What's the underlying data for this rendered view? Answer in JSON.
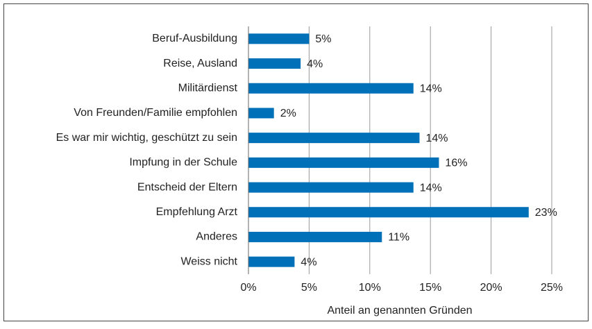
{
  "chart_data": {
    "type": "bar",
    "orientation": "horizontal",
    "categories": [
      "Beruf-Ausbildung",
      "Reise, Ausland",
      "Militärdienst",
      "Von Freunden/Familie empfohlen",
      "Es war mir wichtig, geschützt zu sein",
      "Impfung in der Schule",
      "Entscheid der Eltern",
      "Empfehlung Arzt",
      "Anderes",
      "Weiss nicht"
    ],
    "values": [
      5.0,
      4.3,
      13.6,
      2.1,
      14.1,
      15.7,
      13.6,
      23.1,
      11.0,
      3.8
    ],
    "value_labels": [
      "5%",
      "4%",
      "14%",
      "2%",
      "14%",
      "16%",
      "14%",
      "23%",
      "11%",
      "4%"
    ],
    "color": "#0070b8",
    "xlabel": "Anteil an genannten Gründen",
    "xlim": [
      0,
      25
    ],
    "xticks": [
      {
        "value": 0,
        "label": "0%"
      },
      {
        "value": 5,
        "label": "5%"
      },
      {
        "value": 10,
        "label": "10%"
      },
      {
        "value": 15,
        "label": "15%"
      },
      {
        "value": 20,
        "label": "20%"
      },
      {
        "value": 25,
        "label": "25%"
      }
    ],
    "grid": true
  }
}
